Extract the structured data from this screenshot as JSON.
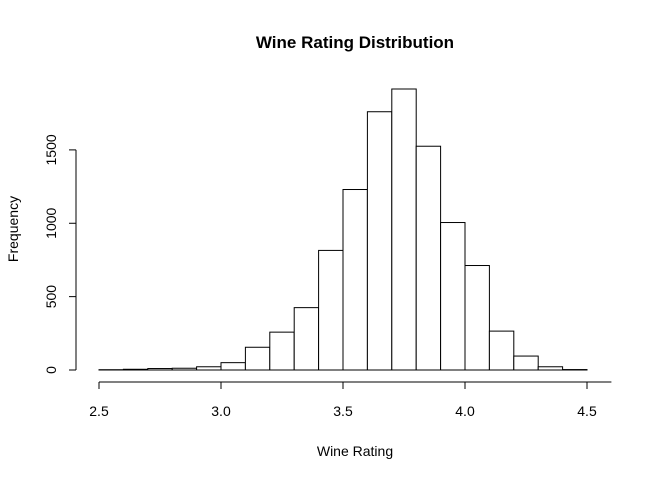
{
  "chart_data": {
    "type": "bar",
    "title": "Wine Rating Distribution",
    "xlabel": "Wine Rating",
    "ylabel": "Frequency",
    "bin_width": 0.1,
    "bins": [
      {
        "start": 2.5,
        "end": 2.6,
        "count": 2
      },
      {
        "start": 2.6,
        "end": 2.7,
        "count": 5
      },
      {
        "start": 2.7,
        "end": 2.8,
        "count": 10
      },
      {
        "start": 2.8,
        "end": 2.9,
        "count": 12
      },
      {
        "start": 2.9,
        "end": 3.0,
        "count": 22
      },
      {
        "start": 3.0,
        "end": 3.1,
        "count": 50
      },
      {
        "start": 3.1,
        "end": 3.2,
        "count": 155
      },
      {
        "start": 3.2,
        "end": 3.3,
        "count": 258
      },
      {
        "start": 3.3,
        "end": 3.4,
        "count": 425
      },
      {
        "start": 3.4,
        "end": 3.5,
        "count": 815
      },
      {
        "start": 3.5,
        "end": 3.6,
        "count": 1230
      },
      {
        "start": 3.6,
        "end": 3.7,
        "count": 1760
      },
      {
        "start": 3.7,
        "end": 3.8,
        "count": 1915
      },
      {
        "start": 3.8,
        "end": 3.9,
        "count": 1525
      },
      {
        "start": 3.9,
        "end": 4.0,
        "count": 1005
      },
      {
        "start": 4.0,
        "end": 4.1,
        "count": 712
      },
      {
        "start": 4.1,
        "end": 4.2,
        "count": 265
      },
      {
        "start": 4.2,
        "end": 4.3,
        "count": 95
      },
      {
        "start": 4.3,
        "end": 4.4,
        "count": 22
      },
      {
        "start": 4.4,
        "end": 4.5,
        "count": 3
      },
      {
        "start": 4.5,
        "end": 4.6,
        "count": 0
      }
    ],
    "xlim": [
      2.5,
      4.6
    ],
    "ylim": [
      0,
      1915
    ],
    "xticks": [
      2.5,
      3.0,
      3.5,
      4.0,
      4.5
    ],
    "xtick_labels": [
      "2.5",
      "3.0",
      "3.5",
      "4.0",
      "4.5"
    ],
    "yticks": [
      0,
      500,
      1000,
      1500
    ],
    "ytick_labels": [
      "0",
      "500",
      "1000",
      "1500"
    ],
    "grid": false,
    "legend": "none",
    "colors": {
      "bar_fill": "#ffffff",
      "bar_stroke": "#000000",
      "axis": "#000000"
    }
  }
}
